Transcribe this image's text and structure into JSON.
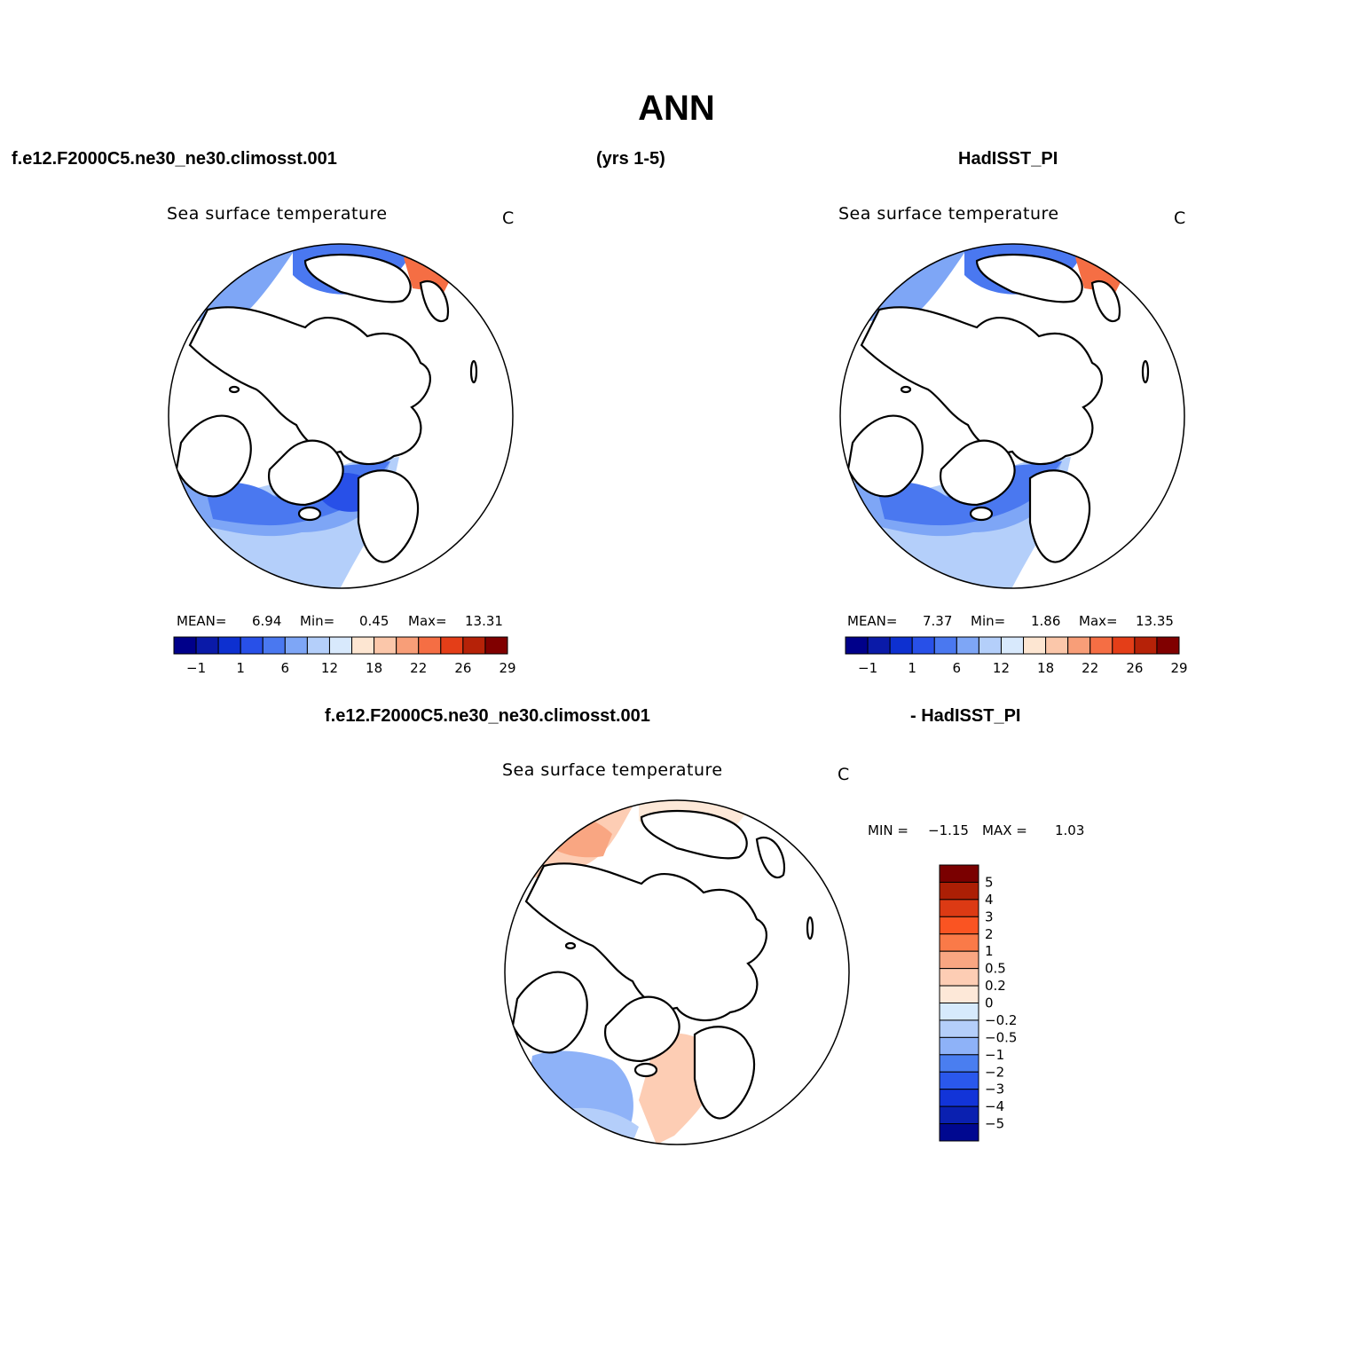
{
  "title": "ANN",
  "header": {
    "case_name": "f.e12.F2000C5.ne30_ne30.climosst.001",
    "years": "(yrs 1-5)",
    "obs_name": "HadISST_PI",
    "diff_case": "f.e12.F2000C5.ne30_ne30.climosst.001",
    "diff_obs": "- HadISST_PI"
  },
  "panels": {
    "model": {
      "variable": "Sea surface temperature",
      "units": "C",
      "mean_label": "MEAN=",
      "mean": "6.94",
      "min_label": "Min=",
      "min": "0.45",
      "max_label": "Max=",
      "max": "13.31"
    },
    "obs": {
      "variable": "Sea surface temperature",
      "units": "C",
      "mean_label": "MEAN=",
      "mean": "7.37",
      "min_label": "Min=",
      "min": "1.86",
      "max_label": "Max=",
      "max": "13.35"
    },
    "diff": {
      "variable": "Sea surface temperature",
      "units": "C",
      "min_label": "MIN =",
      "min": "−1.15",
      "max_label": "MAX =",
      "max": "1.03"
    }
  },
  "colorbar_abs": {
    "colors": [
      "#00008a",
      "#0a1aa8",
      "#0d30d0",
      "#2850e8",
      "#4a78f0",
      "#7ea6f6",
      "#b4cffa",
      "#d8e9fc",
      "#fde6d2",
      "#fbc7aa",
      "#f89e78",
      "#f56e44",
      "#e43e18",
      "#b62208",
      "#800000"
    ],
    "tick_labels": [
      "−1",
      "1",
      "6",
      "12",
      "18",
      "22",
      "26",
      "29"
    ]
  },
  "colorbar_diff": {
    "colors": [
      "#7a0000",
      "#ac1f05",
      "#dc3a14",
      "#fa5422",
      "#fa7a48",
      "#f9a682",
      "#fdcdb4",
      "#fde8d8",
      "#d6eafc",
      "#b4cefa",
      "#8eb2f8",
      "#4a7ef0",
      "#2a58ec",
      "#1234d8",
      "#0a20b0",
      "#000890"
    ],
    "tick_labels": [
      "5",
      "4",
      "3",
      "2",
      "1",
      "0.5",
      "0.2",
      "0",
      "−0.2",
      "−0.5",
      "−1",
      "−2",
      "−3",
      "−4",
      "−5"
    ]
  }
}
